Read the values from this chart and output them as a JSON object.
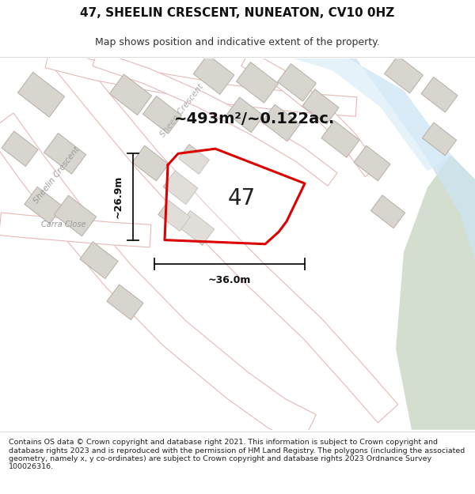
{
  "title": "47, SHEELIN CRESCENT, NUNEATON, CV10 0HZ",
  "subtitle": "Map shows position and indicative extent of the property.",
  "footer": "Contains OS data © Crown copyright and database right 2021. This information is subject to Crown copyright and database rights 2023 and is reproduced with the permission of HM Land Registry. The polygons (including the associated geometry, namely x, y co-ordinates) are subject to Crown copyright and database rights 2023 Ordnance Survey 100026316.",
  "area_label": "~493m²/~0.122ac.",
  "width_label": "~36.0m",
  "height_label": "~26.9m",
  "number_label": "47",
  "map_bg": "#f2f0ed",
  "road_fill": "#ffffff",
  "road_edge": "#e8b8b8",
  "building_fill": "#d8d4ce",
  "building_edge": "#bbb5ae",
  "water_color": "#cde3f0",
  "water2_color": "#daedf8",
  "green_color": "#d4dece",
  "property_color": "#dd0000",
  "property_lw": 2.2,
  "dim_color": "#111111",
  "title_fontsize": 11,
  "subtitle_fontsize": 9,
  "footer_fontsize": 6.8,
  "area_fontsize": 14,
  "number_fontsize": 20,
  "dim_fontsize": 9,
  "road_label_fontsize": 7.5
}
